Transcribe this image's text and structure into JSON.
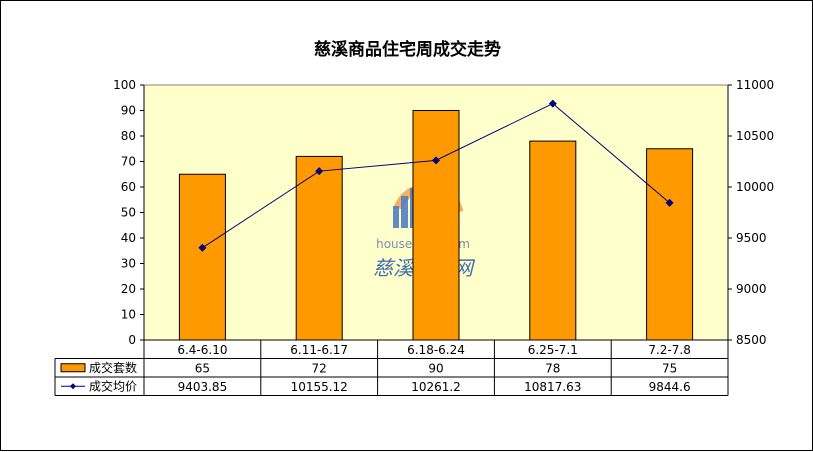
{
  "chart_data": {
    "type": "bar+line",
    "title": "慈溪商品住宅周成交走势",
    "categories": [
      "6.4-6.10",
      "6.11-6.17",
      "6.18-6.24",
      "6.25-7.1",
      "7.2-7.8"
    ],
    "series": [
      {
        "name": "成交套数",
        "type": "bar",
        "axis": "left",
        "color": "#ff9900",
        "values": [
          65,
          72,
          90,
          78,
          75
        ],
        "labels": [
          "65",
          "72",
          "90",
          "78",
          "75"
        ]
      },
      {
        "name": "成交均价",
        "type": "line",
        "axis": "right",
        "color": "#000080",
        "values": [
          9403.85,
          10155.12,
          10261.2,
          10817.63,
          9844.6
        ],
        "labels": [
          "9403.85",
          "10155.12",
          "10261.2",
          "10817.63",
          "9844.6"
        ]
      }
    ],
    "y_left": {
      "min": 0,
      "max": 100,
      "step": 10
    },
    "y_right": {
      "min": 8500,
      "max": 11000,
      "step": 500
    },
    "plot_background": "#ffffcc",
    "legend": "data-table"
  },
  "watermark": {
    "url": "house.zxip.com",
    "name": "慈溪房产网"
  }
}
